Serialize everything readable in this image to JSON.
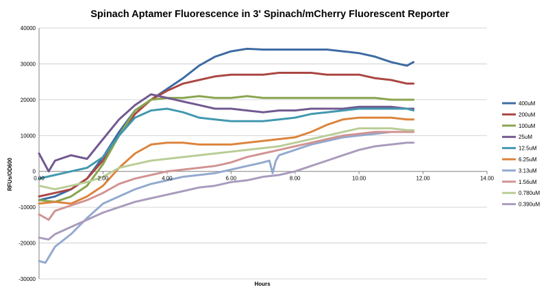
{
  "chart_data": {
    "type": "line",
    "title": "Spinach Aptamer Fluorescence in 3' Spinach/mCherry Fluorescent Reporter",
    "xlabel": "Hours",
    "ylabel": "RFUs/OD600",
    "xlim": [
      0,
      14
    ],
    "ylim": [
      -30000,
      40000
    ],
    "x_ticks": [
      0,
      2,
      4,
      6,
      8,
      10,
      12,
      14
    ],
    "x_tick_labels": [
      "0.00",
      "2.00",
      "4.00",
      "6.00",
      "8.00",
      "10.00",
      "12.00",
      "14.00"
    ],
    "y_ticks": [
      -30000,
      -20000,
      -10000,
      0,
      10000,
      20000,
      30000,
      40000
    ],
    "y_tick_labels": [
      "-30000",
      "-20000",
      "-10000",
      "0",
      "10000",
      "20000",
      "30000",
      "40000"
    ],
    "grid": "horizontal",
    "legend_position": "right",
    "series": [
      {
        "name": "400uM",
        "color": "#3d6ba3",
        "x": [
          0.0,
          0.5,
          1.0,
          1.5,
          2.0,
          2.5,
          3.0,
          3.5,
          4.0,
          4.5,
          5.0,
          5.5,
          6.0,
          6.5,
          7.0,
          7.5,
          8.0,
          8.5,
          9.0,
          9.5,
          10.0,
          10.5,
          11.0,
          11.5,
          11.7
        ],
        "y": [
          -8000,
          -7000,
          -5000,
          -2000,
          4000,
          11000,
          17000,
          20000,
          23000,
          26000,
          29500,
          32000,
          33500,
          34200,
          34000,
          34000,
          34000,
          34000,
          34000,
          33500,
          33000,
          32000,
          30500,
          29500,
          30500
        ]
      },
      {
        "name": "200uM",
        "color": "#aa4643",
        "x": [
          0.0,
          0.5,
          1.0,
          1.5,
          2.0,
          2.5,
          3.0,
          3.5,
          4.0,
          4.5,
          5.0,
          5.5,
          6.0,
          6.5,
          7.0,
          7.5,
          8.0,
          8.5,
          9.0,
          9.5,
          10.0,
          10.5,
          11.0,
          11.5,
          11.7
        ],
        "y": [
          -7000,
          -6000,
          -5000,
          -2000,
          3000,
          10000,
          16000,
          20000,
          22500,
          24500,
          25500,
          26500,
          27000,
          27000,
          27000,
          27500,
          27500,
          27500,
          27000,
          27000,
          27000,
          26000,
          25500,
          24500,
          24500
        ]
      },
      {
        "name": "100uM",
        "color": "#89a54e",
        "x": [
          0.0,
          0.5,
          1.0,
          1.5,
          2.0,
          2.5,
          3.0,
          3.5,
          4.0,
          4.5,
          5.0,
          5.5,
          6.0,
          6.5,
          7.0,
          7.5,
          8.0,
          8.5,
          9.0,
          9.5,
          10.0,
          10.5,
          11.0,
          11.5,
          11.7
        ],
        "y": [
          -8000,
          -8500,
          -7000,
          -4000,
          2000,
          10000,
          17000,
          20000,
          20500,
          20500,
          21000,
          20500,
          20500,
          21000,
          20500,
          20500,
          20500,
          20500,
          20500,
          20500,
          20500,
          20500,
          20000,
          20000,
          20000
        ]
      },
      {
        "name": "25uM",
        "color": "#71588f",
        "x": [
          0.0,
          0.3,
          0.5,
          1.0,
          1.5,
          2.0,
          2.5,
          3.0,
          3.5,
          4.0,
          4.5,
          5.0,
          5.5,
          6.0,
          6.5,
          7.0,
          7.5,
          8.0,
          8.5,
          9.0,
          9.5,
          10.0,
          10.5,
          11.0,
          11.5,
          11.7
        ],
        "y": [
          5000,
          0,
          3000,
          4500,
          3500,
          9000,
          14500,
          18500,
          21500,
          20500,
          19500,
          18500,
          17500,
          17500,
          17000,
          16500,
          17000,
          17000,
          17500,
          17500,
          17500,
          18000,
          18000,
          18000,
          17500,
          17500
        ]
      },
      {
        "name": "12.5uM",
        "color": "#4198af",
        "x": [
          0.0,
          0.5,
          1.0,
          1.5,
          2.0,
          2.5,
          3.0,
          3.5,
          4.0,
          4.5,
          5.0,
          5.5,
          6.0,
          6.5,
          7.0,
          7.5,
          8.0,
          8.5,
          9.0,
          9.5,
          10.0,
          10.5,
          11.0,
          11.5,
          11.7
        ],
        "y": [
          -2000,
          -1000,
          0,
          1000,
          4000,
          10000,
          15000,
          17000,
          17500,
          16500,
          15000,
          14500,
          14000,
          14000,
          14000,
          14500,
          15000,
          16000,
          16500,
          17000,
          17500,
          17500,
          17500,
          17500,
          17000
        ]
      },
      {
        "name": "6.25uM",
        "color": "#db843d",
        "x": [
          0.0,
          0.5,
          1.0,
          1.5,
          2.0,
          2.5,
          3.0,
          3.5,
          4.0,
          4.5,
          5.0,
          5.5,
          6.0,
          6.5,
          7.0,
          7.5,
          8.0,
          8.5,
          9.0,
          9.5,
          10.0,
          10.5,
          11.0,
          11.5,
          11.7
        ],
        "y": [
          -9000,
          -8500,
          -9000,
          -7000,
          -4000,
          1000,
          5000,
          7500,
          8000,
          8000,
          7500,
          7500,
          7500,
          8000,
          8500,
          9000,
          9500,
          11000,
          13000,
          14500,
          15000,
          15000,
          15000,
          14500,
          14500
        ]
      },
      {
        "name": "3.13uM",
        "color": "#93a9cf",
        "x": [
          0.0,
          0.2,
          0.5,
          1.0,
          1.5,
          2.0,
          2.5,
          3.0,
          3.5,
          4.0,
          4.5,
          5.0,
          5.5,
          6.0,
          6.5,
          7.0,
          7.2,
          7.3,
          7.4,
          7.5,
          8.0,
          8.5,
          9.0,
          9.5,
          10.0,
          10.5,
          11.0,
          11.5,
          11.7
        ],
        "y": [
          -25000,
          -25500,
          -21000,
          -17500,
          -13000,
          -9000,
          -7000,
          -5000,
          -3500,
          -2500,
          -1500,
          -1000,
          -500,
          500,
          1500,
          2500,
          3000,
          -500,
          3000,
          4500,
          6000,
          7500,
          8500,
          9500,
          10000,
          10500,
          11000,
          11000,
          11000
        ]
      },
      {
        "name": "1.56uM",
        "color": "#d19392",
        "x": [
          0.0,
          0.3,
          0.5,
          1.0,
          1.5,
          2.0,
          2.5,
          3.0,
          3.5,
          4.0,
          4.5,
          5.0,
          5.5,
          6.0,
          6.5,
          7.0,
          7.5,
          8.0,
          8.5,
          9.0,
          9.5,
          10.0,
          10.5,
          11.0,
          11.5,
          11.7
        ],
        "y": [
          -12000,
          -13500,
          -11000,
          -9500,
          -8000,
          -6000,
          -3500,
          -2000,
          -1000,
          0,
          500,
          1000,
          1500,
          2500,
          4000,
          5000,
          6000,
          7000,
          8000,
          9000,
          10000,
          10500,
          11000,
          11000,
          11000,
          11000
        ]
      },
      {
        "name": "0.780uM",
        "color": "#b9cd96",
        "x": [
          0.0,
          0.5,
          1.0,
          1.5,
          2.0,
          2.5,
          3.0,
          3.5,
          4.0,
          4.5,
          5.0,
          5.5,
          6.0,
          6.5,
          7.0,
          7.5,
          8.0,
          8.5,
          9.0,
          9.5,
          10.0,
          10.5,
          11.0,
          11.5,
          11.7
        ],
        "y": [
          -4000,
          -5000,
          -4000,
          -3000,
          -1500,
          1000,
          2000,
          3000,
          3500,
          4000,
          4500,
          5000,
          5500,
          6000,
          6500,
          7000,
          8000,
          9000,
          10000,
          11000,
          12000,
          12000,
          12000,
          11500,
          11500
        ]
      },
      {
        "name": "0.390uM",
        "color": "#a99bbd",
        "x": [
          0.0,
          0.3,
          0.5,
          1.0,
          1.5,
          2.0,
          2.5,
          3.0,
          3.5,
          4.0,
          4.5,
          5.0,
          5.5,
          6.0,
          6.5,
          7.0,
          7.5,
          8.0,
          8.5,
          9.0,
          9.5,
          10.0,
          10.5,
          11.0,
          11.5,
          11.7
        ],
        "y": [
          -18500,
          -19000,
          -17500,
          -15500,
          -13500,
          -11500,
          -10000,
          -8500,
          -7500,
          -6500,
          -5500,
          -4500,
          -4000,
          -3000,
          -2500,
          -1500,
          -1000,
          0,
          1500,
          3000,
          4500,
          6000,
          7000,
          7500,
          8000,
          8000
        ]
      }
    ]
  }
}
